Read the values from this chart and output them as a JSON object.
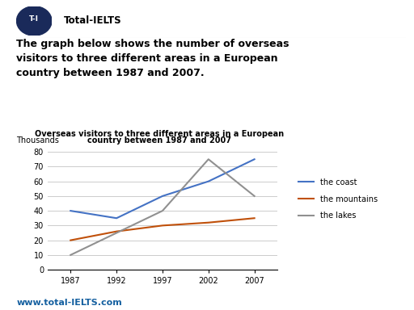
{
  "title_line1": "Overseas visitors to three different areas in a European",
  "title_line2": "country between 1987 and 2007",
  "ylabel": "Thousands",
  "years": [
    1987,
    1992,
    1997,
    2002,
    2007
  ],
  "coast": [
    40,
    35,
    50,
    60,
    75
  ],
  "mountains": [
    20,
    26,
    30,
    32,
    35
  ],
  "lakes": [
    10,
    25,
    40,
    75,
    50
  ],
  "coast_color": "#4472C4",
  "mountains_color": "#C0500A",
  "lakes_color": "#909090",
  "ylim": [
    0,
    80
  ],
  "yticks": [
    0,
    10,
    20,
    30,
    40,
    50,
    60,
    70,
    80
  ],
  "background_color": "#ffffff",
  "header_text": "Total-IELTS",
  "logo_bg": "#1a2a5a",
  "logo_text": "T-I",
  "body_text_line1": "The graph below shows the number of overseas",
  "body_text_line2": "visitors to three different areas in a European",
  "body_text_line3": "country between 1987 and 2007.",
  "footer_text": "www.total-IELTS.com",
  "legend_labels": [
    "the coast",
    "the mountains",
    "the lakes"
  ]
}
